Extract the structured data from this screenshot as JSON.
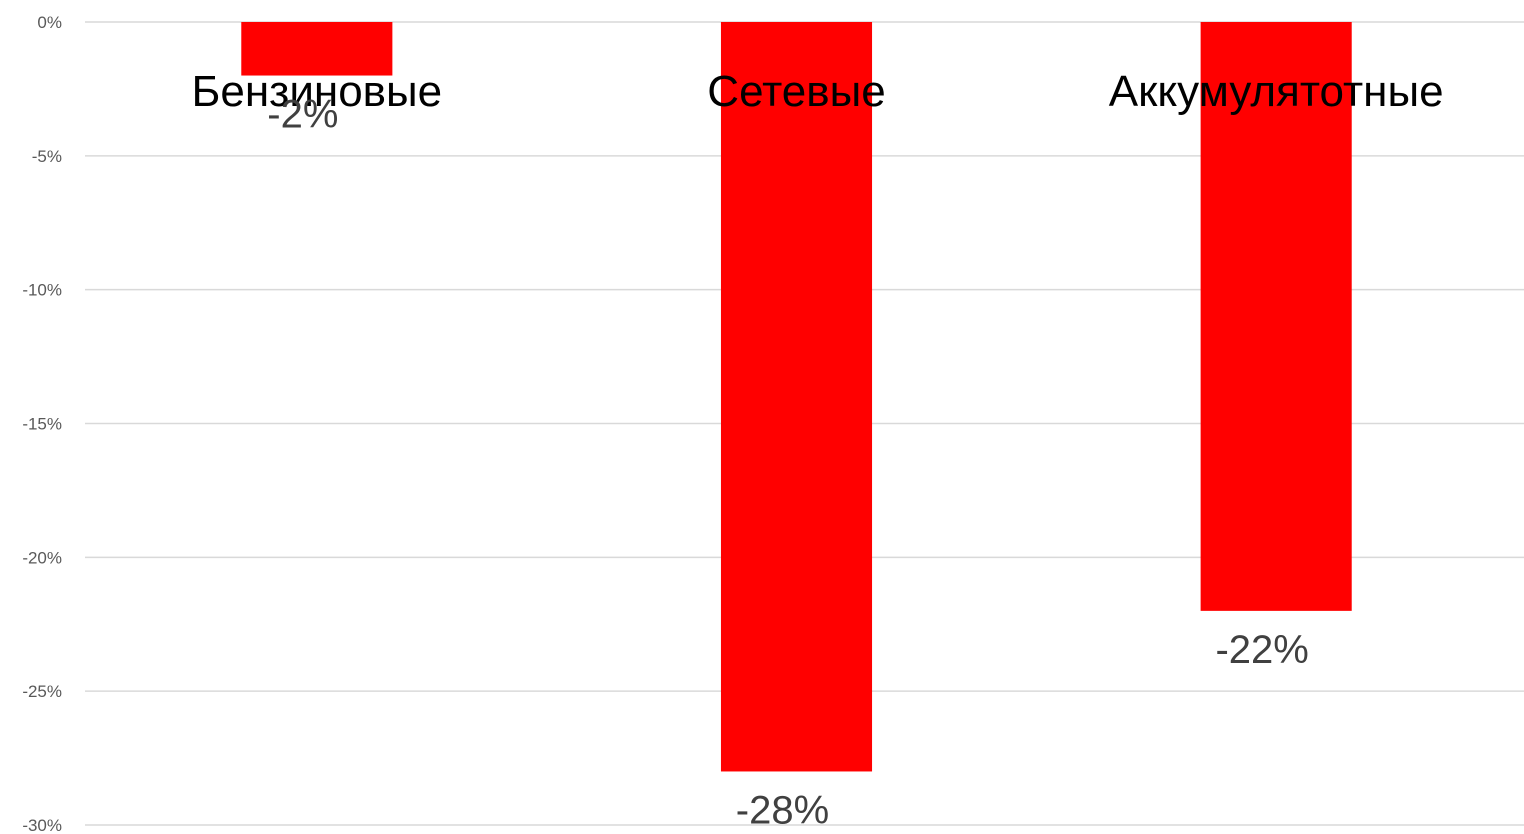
{
  "chart_data": {
    "type": "bar",
    "categories": [
      "Бензиновые",
      "Сетевые",
      "Аккумулятотные"
    ],
    "values": [
      -2,
      -28,
      -22
    ],
    "data_labels": [
      "-2%",
      "-28%",
      "-22%"
    ],
    "title": "",
    "xlabel": "",
    "ylabel": "",
    "ylim": [
      -30,
      0
    ],
    "yticks": [
      0,
      -5,
      -10,
      -15,
      -20,
      -25,
      -30
    ],
    "ytick_labels": [
      "0%",
      "-5%",
      "-10%",
      "-15%",
      "-20%",
      "-25%",
      "-30%"
    ],
    "grid": true,
    "legend": "none",
    "bar_color": "#ff0000",
    "gridline_color": "#d9d9d9",
    "category_label_position": "top"
  }
}
